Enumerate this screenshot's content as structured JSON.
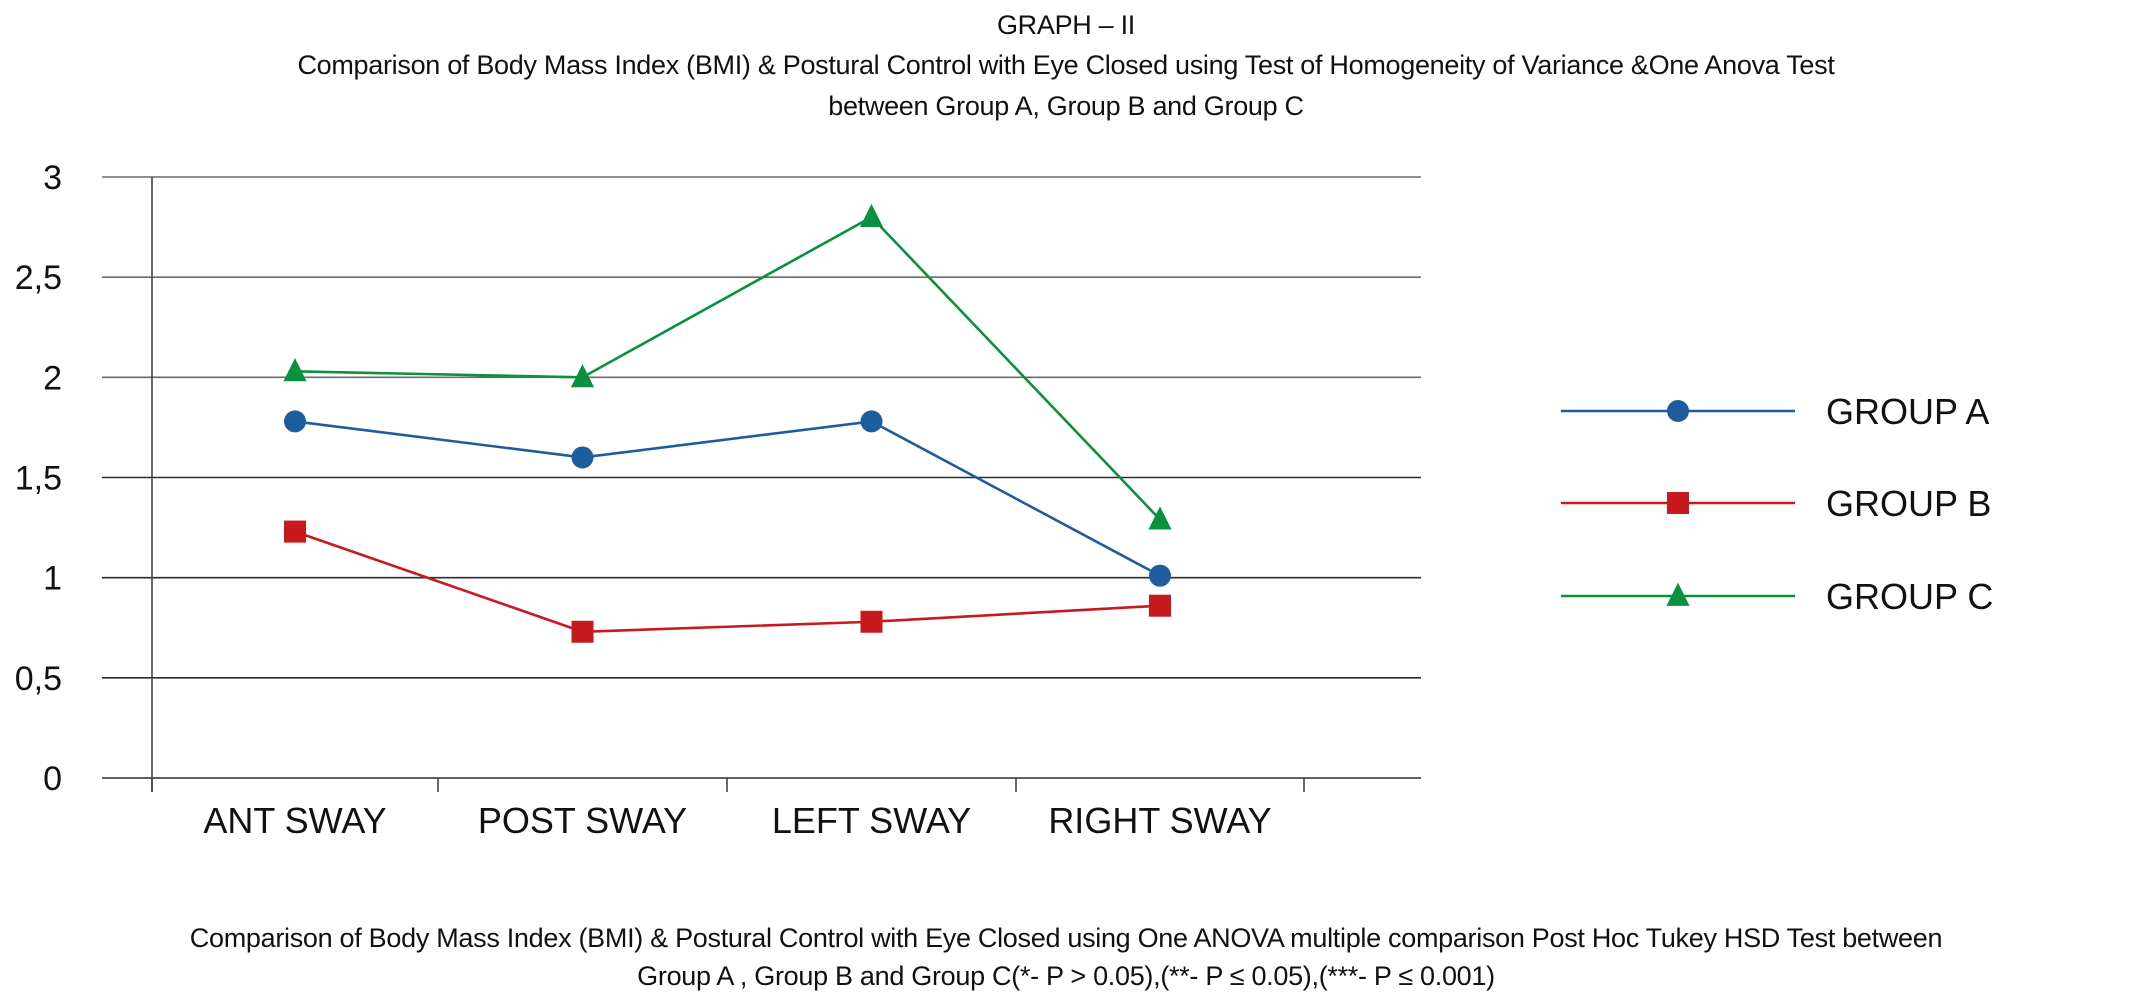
{
  "chart_data": {
    "type": "line",
    "title": "GRAPH – II",
    "subtitle": [
      "Comparison of Body Mass Index (BMI) & Postural Control with Eye Closed using Test of Homogeneity of Variance &One  Anova Test",
      "between Group A, Group B and Group C"
    ],
    "caption": [
      "Comparison of Body Mass Index (BMI) & Postural Control with Eye Closed using One ANOVA multiple comparison Post Hoc Tukey HSD Test between",
      "Group A , Group B and Group C(*- P > 0.05),(**- P ≤ 0.05),(***- P ≤  0.001)"
    ],
    "xlabel": "",
    "ylabel": "",
    "categories": [
      "ANT SWAY",
      "POST SWAY",
      "LEFT SWAY",
      "RIGHT SWAY"
    ],
    "ylim": [
      0,
      3
    ],
    "yticks": [
      0,
      0.5,
      1,
      1.5,
      2,
      2.5,
      3
    ],
    "ytick_labels": [
      "0",
      "0,5",
      "1",
      "1,5",
      "2",
      "2,5",
      "3"
    ],
    "grid": true,
    "legend_position": "right",
    "series": [
      {
        "name": "GROUP A",
        "marker": "circle",
        "color": "#1f5c9e",
        "values": [
          1.78,
          1.6,
          1.78,
          1.01
        ]
      },
      {
        "name": "GROUP B",
        "marker": "square",
        "color": "#c8191f",
        "values": [
          1.23,
          0.73,
          0.78,
          0.86
        ]
      },
      {
        "name": "GROUP C",
        "marker": "triangle",
        "color": "#0a9140",
        "values": [
          2.03,
          2.0,
          2.8,
          1.29
        ]
      }
    ]
  }
}
